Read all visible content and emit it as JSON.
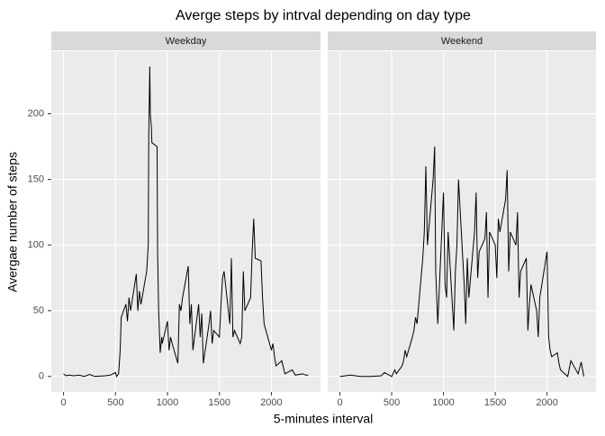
{
  "chart_data": {
    "type": "line",
    "title": "Averge steps by intrval depending on day type",
    "x_label": "5-minutes interval",
    "y_label": "Avergae number of steps",
    "xlim": [
      -117.75,
      2472.75
    ],
    "xticks": [
      0,
      500,
      1000,
      1500,
      2000
    ],
    "ylim": [
      -11.8,
      247.6
    ],
    "yticks": [
      0,
      50,
      100,
      150,
      200
    ],
    "grid": true,
    "series": [
      {
        "name": "Weekday",
        "color": "#000000",
        "x": [
          0,
          25,
          50,
          100,
          150,
          200,
          250,
          300,
          400,
          450,
          500,
          510,
          530,
          545,
          555,
          600,
          615,
          630,
          645,
          700,
          715,
          730,
          745,
          800,
          815,
          820,
          830,
          835,
          845,
          850,
          900,
          905,
          915,
          930,
          945,
          950,
          1000,
          1015,
          1030,
          1045,
          1100,
          1115,
          1130,
          1145,
          1200,
          1215,
          1230,
          1245,
          1300,
          1315,
          1330,
          1345,
          1400,
          1415,
          1430,
          1445,
          1500,
          1515,
          1530,
          1545,
          1600,
          1615,
          1630,
          1645,
          1700,
          1715,
          1730,
          1745,
          1800,
          1815,
          1830,
          1845,
          1900,
          1915,
          1930,
          2000,
          2015,
          2030,
          2045,
          2100,
          2130,
          2200,
          2230,
          2300,
          2330,
          2355
        ],
        "values": [
          2,
          0.5,
          1,
          0.5,
          1,
          0,
          1.5,
          0,
          0.5,
          1,
          3,
          0,
          2,
          20,
          45,
          55,
          42,
          60,
          50,
          78,
          50,
          65,
          55,
          80,
          100,
          185,
          236,
          200,
          190,
          178,
          175,
          95,
          50,
          18,
          30,
          25,
          42,
          20,
          30,
          25,
          10,
          55,
          50,
          60,
          84,
          40,
          55,
          20,
          55,
          30,
          48,
          10,
          40,
          50,
          25,
          35,
          30,
          55,
          75,
          80,
          40,
          90,
          30,
          35,
          25,
          30,
          80,
          50,
          60,
          95,
          120,
          90,
          88,
          60,
          40,
          20,
          25,
          15,
          8,
          12,
          2,
          5,
          1,
          2,
          1,
          1
        ]
      },
      {
        "name": "Weekend",
        "color": "#000000",
        "x": [
          0,
          100,
          200,
          300,
          400,
          430,
          500,
          530,
          545,
          600,
          615,
          630,
          645,
          700,
          715,
          730,
          745,
          800,
          815,
          830,
          845,
          900,
          915,
          925,
          945,
          1000,
          1015,
          1030,
          1045,
          1100,
          1115,
          1130,
          1145,
          1200,
          1215,
          1230,
          1245,
          1300,
          1315,
          1330,
          1345,
          1400,
          1415,
          1430,
          1445,
          1500,
          1515,
          1530,
          1545,
          1600,
          1615,
          1630,
          1645,
          1700,
          1715,
          1730,
          1745,
          1800,
          1815,
          1830,
          1845,
          1900,
          1915,
          1930,
          2000,
          2015,
          2030,
          2045,
          2100,
          2115,
          2130,
          2200,
          2230,
          2300,
          2330,
          2355
        ],
        "values": [
          0,
          1,
          0,
          0,
          0.5,
          3,
          0,
          5,
          2,
          8,
          12,
          20,
          15,
          30,
          35,
          45,
          40,
          90,
          110,
          160,
          100,
          150,
          175,
          80,
          40,
          140,
          70,
          60,
          110,
          35,
          80,
          100,
          150,
          70,
          40,
          90,
          60,
          110,
          140,
          75,
          95,
          105,
          125,
          60,
          110,
          100,
          75,
          120,
          110,
          135,
          157,
          80,
          110,
          100,
          125,
          60,
          80,
          90,
          35,
          55,
          70,
          50,
          30,
          60,
          95,
          30,
          20,
          15,
          18,
          10,
          5,
          0,
          12,
          2,
          11,
          0
        ]
      }
    ]
  }
}
